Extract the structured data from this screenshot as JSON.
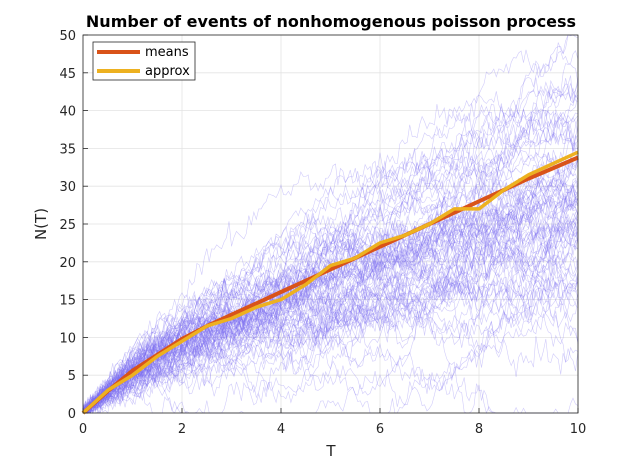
{
  "chart_data": {
    "type": "line",
    "title": "Number of events of nonhomogenous poisson process",
    "xlabel": "T",
    "ylabel": "N(T)",
    "xlim": [
      0,
      10
    ],
    "ylim": [
      0,
      50
    ],
    "xticks": [
      0,
      2,
      4,
      6,
      8,
      10
    ],
    "yticks": [
      0,
      5,
      10,
      15,
      20,
      25,
      30,
      35,
      40,
      45,
      50
    ],
    "grid": true,
    "legend_position": "top-left",
    "sample_path_color": "#7b6cf0",
    "series": [
      {
        "name": "means",
        "color": "#d95319",
        "x": [
          0,
          0.5,
          1,
          1.5,
          2,
          2.5,
          3,
          3.5,
          4,
          4.5,
          5,
          5.5,
          6,
          6.5,
          7,
          7.5,
          8,
          8.5,
          9,
          9.5,
          10
        ],
        "values": [
          0,
          2.9,
          5.6,
          7.7,
          9.8,
          11.5,
          13.0,
          14.5,
          16.0,
          17.5,
          19.0,
          20.5,
          22.0,
          23.5,
          25.0,
          26.5,
          28.0,
          29.5,
          31.0,
          32.4,
          33.8
        ]
      },
      {
        "name": "approx",
        "color": "#edb120",
        "x": [
          0,
          0.5,
          1,
          1.5,
          2,
          2.5,
          3,
          3.5,
          4,
          4.5,
          5,
          5.5,
          6,
          6.5,
          7,
          7.5,
          8,
          8.5,
          9,
          9.5,
          10
        ],
        "values": [
          0,
          3.0,
          5.0,
          7.5,
          9.5,
          11.5,
          12.5,
          14.0,
          15.0,
          17.0,
          19.5,
          20.5,
          22.5,
          23.5,
          25.0,
          27.0,
          27.0,
          29.5,
          31.5,
          33.0,
          34.5
        ]
      }
    ]
  }
}
